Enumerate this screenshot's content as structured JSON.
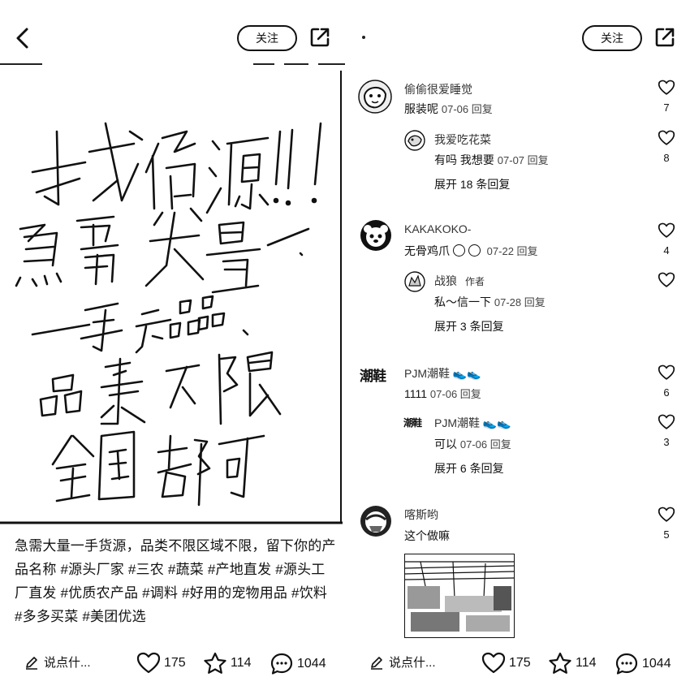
{
  "left": {
    "follow_label": "关注",
    "caption": "急需大量一手货源，品类不限区域不限，留下你的产品名称 #源头厂家 #三农 #蔬菜 #产地直发 #源头工厂直发 #优质农产品 #调料 #好用的宠物用品 #饮料 #多多买菜 #美团优选",
    "handwriting_lines": [
      "找货源!!!",
      "急需大量",
      "一手产品",
      "品类不限",
      "全国都可"
    ],
    "comment_placeholder": "说点什...",
    "likes": "175",
    "favorites": "114",
    "comments": "1044",
    "icons": [
      "back-icon",
      "share-icon",
      "pen-icon",
      "heart-icon",
      "star-icon",
      "chat-icon"
    ]
  },
  "right": {
    "follow_label": "关注",
    "comment_placeholder": "说点什...",
    "likes": "175",
    "favorites": "114",
    "comments": "1044",
    "comments_list": [
      {
        "user": "偷偷很爱睡觉",
        "text": "服装呢",
        "meta": "07-06 回复",
        "likes": "7",
        "replies": [
          {
            "user": "我爱吃花菜",
            "text": "有吗 我想要",
            "meta": "07-07 回复",
            "likes": "8"
          }
        ],
        "expand": "展开 18 条回复"
      },
      {
        "user": "KAKAKOKO-",
        "text": "无骨鸡爪",
        "meta": "07-22 回复",
        "likes": "4",
        "replies": [
          {
            "user": "战狼",
            "tag": "作者",
            "text": "私～信一下",
            "meta": "07-28 回复",
            "likes": ""
          }
        ],
        "expand": "展开 3 条回复"
      },
      {
        "user": "PJM潮鞋",
        "text": "1111",
        "meta": "07-06 回复",
        "likes": "6",
        "avatar_text": "潮鞋",
        "replies": [
          {
            "user": "PJM潮鞋",
            "text": "可以",
            "meta": "07-06 回复",
            "likes": "3",
            "avatar_text": "潮鞋"
          }
        ],
        "expand": "展开 6 条回复"
      },
      {
        "user": "喀斯哟",
        "text": "这个做嘛",
        "meta": "",
        "likes": "5",
        "replies": []
      }
    ]
  }
}
